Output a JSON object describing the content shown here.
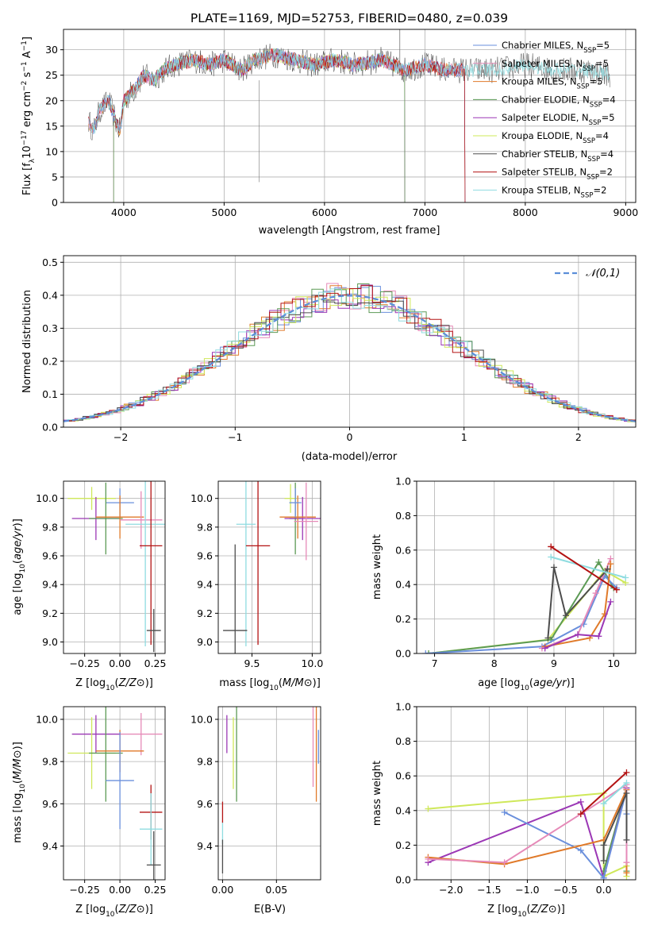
{
  "figure_title": "PLATE=1169, MJD=52753, FIBERID=0480, z=0.039",
  "series": [
    {
      "id": "ch_miles",
      "name": "Chabrier MILES",
      "nssp": "5",
      "color": "#6a8fdc"
    },
    {
      "id": "sa_miles",
      "name": "Salpeter MILES",
      "nssp": "5",
      "color": "#e68ab8"
    },
    {
      "id": "kr_miles",
      "name": "Kroupa MILES",
      "nssp": "5",
      "color": "#e07a2a"
    },
    {
      "id": "ch_elodie",
      "name": "Chabrier ELODIE",
      "nssp": "4",
      "color": "#5c9a55"
    },
    {
      "id": "sa_elodie",
      "name": "Salpeter ELODIE",
      "nssp": "5",
      "color": "#9b37b5"
    },
    {
      "id": "kr_elodie",
      "name": "Kroupa ELODIE",
      "nssp": "4",
      "color": "#cfe85a"
    },
    {
      "id": "ch_stelib",
      "name": "Chabrier STELIB",
      "nssp": "4",
      "color": "#4d4d4d"
    },
    {
      "id": "sa_stelib",
      "name": "Salpeter STELIB",
      "nssp": "2",
      "color": "#b31313"
    },
    {
      "id": "kr_stelib",
      "name": "Kroupa STELIB",
      "nssp": "2",
      "color": "#8fdce0"
    }
  ],
  "legend_nssp_prefix": "N",
  "legend_nssp_sub": "SSP",
  "chart_data": [
    {
      "id": "spectrum",
      "type": "line",
      "xlabel": "wavelength [Angstrom, rest frame]",
      "ylabel": "Flux [f_λ 10^-17 erg cm^-2 s^-1 A^-1]",
      "ylabel_parts": {
        "a": "Flux [f",
        "a_sub": "λ",
        "b": "10",
        "b_sup": "−17",
        "c": " erg cm",
        "c_sup": "−2",
        "d": " s",
        "d_sup": "−1",
        "e": " A",
        "e_sup": "−1",
        "f": "]"
      },
      "xlim": [
        3400,
        9100
      ],
      "ylim": [
        0,
        34
      ],
      "xticks": [
        4000,
        5000,
        6000,
        7000,
        8000,
        9000
      ],
      "yticks": [
        0,
        5,
        10,
        15,
        20,
        25,
        30
      ],
      "legend_position": "top-right",
      "spectrum_anchors": [
        [
          3650,
          16
        ],
        [
          3700,
          14
        ],
        [
          3760,
          18
        ],
        [
          3850,
          20
        ],
        [
          3920,
          16
        ],
        [
          3960,
          14
        ],
        [
          4000,
          20
        ],
        [
          4100,
          22
        ],
        [
          4200,
          25
        ],
        [
          4300,
          24
        ],
        [
          4400,
          26
        ],
        [
          4500,
          27
        ],
        [
          4700,
          28
        ],
        [
          4860,
          27
        ],
        [
          5000,
          28
        ],
        [
          5175,
          26
        ],
        [
          5300,
          28
        ],
        [
          5500,
          29
        ],
        [
          5700,
          28
        ],
        [
          5900,
          27
        ],
        [
          6100,
          28
        ],
        [
          6300,
          27
        ],
        [
          6563,
          28
        ],
        [
          6800,
          26
        ],
        [
          7000,
          27
        ],
        [
          7200,
          26
        ],
        [
          7400,
          26
        ],
        [
          7700,
          26
        ],
        [
          8000,
          27
        ],
        [
          8300,
          26
        ],
        [
          8600,
          26
        ],
        [
          8900,
          25
        ]
      ],
      "series_extent": {
        "ch_miles": [
          3650,
          7400
        ],
        "sa_miles": [
          3650,
          7400
        ],
        "kr_miles": [
          3650,
          7400
        ],
        "ch_elodie": [
          3900,
          6800
        ],
        "sa_elodie": [
          3900,
          6800
        ],
        "kr_elodie": [
          3900,
          6800
        ],
        "ch_stelib": [
          3650,
          8850
        ],
        "sa_stelib": [
          3650,
          7400
        ],
        "kr_stelib": [
          3650,
          8850
        ]
      }
    },
    {
      "id": "residuals",
      "type": "area",
      "xlabel": "(data-model)/error",
      "ylabel": "Normed distribution",
      "xlim": [
        -2.5,
        2.5
      ],
      "ylim": [
        0,
        0.52
      ],
      "xticks": [
        -2,
        -1,
        0,
        1,
        2
      ],
      "yticks": [
        0.0,
        0.1,
        0.2,
        0.3,
        0.4,
        0.5
      ],
      "legend_label": "𝒩(0,1)",
      "legend_position": "top-right",
      "bin_width": 0.1
    },
    {
      "id": "z_age",
      "type": "scatter",
      "xlabel": "Z [log10(Z/Z⊙)]",
      "ylabel": "age  [log10(age/yr)]",
      "xlim": [
        -0.4,
        0.32
      ],
      "ylim": [
        8.92,
        10.12
      ],
      "xticks": [
        -0.25,
        0.0,
        0.25
      ],
      "yticks": [
        9.0,
        9.2,
        9.4,
        9.6,
        9.8,
        10.0
      ],
      "points": [
        {
          "s": "kr_elodie",
          "x": -0.2,
          "y": 10.0,
          "xe": 0.17,
          "ye": 0.08
        },
        {
          "s": "ch_miles",
          "x": 0.0,
          "y": 9.97,
          "xe": 0.1,
          "ye": 0.1
        },
        {
          "s": "sa_elodie",
          "x": -0.17,
          "y": 9.86,
          "xe": 0.17,
          "ye": 0.15
        },
        {
          "s": "ch_elodie",
          "x": -0.1,
          "y": 9.86,
          "xe": 0.12,
          "ye": 0.25
        },
        {
          "s": "kr_miles",
          "x": 0.0,
          "y": 9.87,
          "xe": 0.17,
          "ye": 0.15
        },
        {
          "s": "sa_miles",
          "x": 0.15,
          "y": 9.85,
          "xe": 0.15,
          "ye": 0.2
        },
        {
          "s": "kr_stelib",
          "x": 0.18,
          "y": 9.82,
          "xe": 0.14,
          "ye": 0.85
        },
        {
          "s": "sa_stelib",
          "x": 0.22,
          "y": 9.67,
          "xe": 0.08,
          "ye": 0.69
        },
        {
          "s": "ch_stelib",
          "x": 0.24,
          "y": 9.08,
          "xe": 0.05,
          "ye": 0.15
        }
      ]
    },
    {
      "id": "mass_age",
      "type": "scatter",
      "xlabel": "mass [log10(M/M⊙)]",
      "ylabel": "",
      "xlim": [
        9.22,
        10.07
      ],
      "ylim": [
        8.92,
        10.12
      ],
      "xticks": [
        9.5,
        10.0
      ],
      "yticks": [
        9.0,
        9.2,
        9.4,
        9.6,
        9.8,
        10.0
      ],
      "points": [
        {
          "s": "kr_elodie",
          "x": 9.82,
          "y": 10.0,
          "xe": 0.05,
          "ye": 0.1
        },
        {
          "s": "ch_elodie",
          "x": 9.86,
          "y": 9.86,
          "xe": 0.05,
          "ye": 0.25
        },
        {
          "s": "sa_elodie",
          "x": 9.92,
          "y": 9.86,
          "xe": 0.15,
          "ye": 0.15
        },
        {
          "s": "kr_miles",
          "x": 9.88,
          "y": 9.87,
          "xe": 0.15,
          "ye": 0.15
        },
        {
          "s": "sa_miles",
          "x": 9.95,
          "y": 9.84,
          "xe": 0.1,
          "ye": 0.27
        },
        {
          "s": "ch_miles",
          "x": 9.86,
          "y": 9.97,
          "xe": 0.05,
          "ye": 0.1
        },
        {
          "s": "kr_stelib",
          "x": 9.45,
          "y": 9.82,
          "xe": 0.08,
          "ye": 0.85
        },
        {
          "s": "sa_stelib",
          "x": 9.55,
          "y": 9.67,
          "xe": 0.1,
          "ye": 0.69
        },
        {
          "s": "ch_stelib",
          "x": 9.36,
          "y": 9.08,
          "xe": 0.1,
          "ye": 0.6
        }
      ]
    },
    {
      "id": "age_weight",
      "type": "line",
      "xlabel": "age  [log10(age/yr)]",
      "ylabel": "mass weight",
      "xlim": [
        6.7,
        10.37
      ],
      "ylim": [
        0,
        1
      ],
      "xticks": [
        7,
        8,
        9,
        10
      ],
      "yticks": [
        0.0,
        0.2,
        0.4,
        0.6,
        0.8,
        1.0
      ],
      "series": [
        {
          "s": "kr_elodie",
          "x": [
            6.9,
            8.9,
            9.85,
            10.2
          ],
          "y": [
            0.0,
            0.08,
            0.48,
            0.41
          ]
        },
        {
          "s": "ch_elodie",
          "x": [
            6.9,
            8.95,
            9.75,
            10.0
          ],
          "y": [
            0.0,
            0.08,
            0.53,
            0.38
          ]
        },
        {
          "s": "ch_miles",
          "x": [
            6.85,
            8.8,
            9.5,
            9.85,
            10.05
          ],
          "y": [
            0.0,
            0.04,
            0.17,
            0.45,
            0.38
          ]
        },
        {
          "s": "sa_miles",
          "x": [
            8.8,
            9.4,
            9.7,
            9.95
          ],
          "y": [
            0.03,
            0.11,
            0.35,
            0.55
          ]
        },
        {
          "s": "kr_miles",
          "x": [
            8.85,
            9.6,
            9.85,
            9.95
          ],
          "y": [
            0.04,
            0.09,
            0.23,
            0.52
          ]
        },
        {
          "s": "sa_elodie",
          "x": [
            8.85,
            9.4,
            9.75,
            9.95
          ],
          "y": [
            0.03,
            0.11,
            0.1,
            0.3
          ]
        },
        {
          "s": "ch_stelib",
          "x": [
            8.9,
            9.0,
            9.2,
            9.9
          ],
          "y": [
            0.09,
            0.5,
            0.22,
            0.49
          ]
        },
        {
          "s": "kr_stelib",
          "x": [
            8.95,
            10.2
          ],
          "y": [
            0.56,
            0.44
          ]
        },
        {
          "s": "sa_stelib",
          "x": [
            8.95,
            10.05
          ],
          "y": [
            0.62,
            0.37
          ]
        }
      ]
    },
    {
      "id": "z_mass",
      "type": "scatter",
      "xlabel": "Z [log10(Z/Z⊙)]",
      "ylabel": "mass [log10(M/M⊙)]",
      "xlim": [
        -0.4,
        0.32
      ],
      "ylim": [
        9.24,
        10.06
      ],
      "xticks": [
        -0.25,
        0.0,
        0.25
      ],
      "yticks": [
        9.4,
        9.6,
        9.8,
        10.0
      ],
      "points": [
        {
          "s": "sa_elodie",
          "x": -0.17,
          "y": 9.93,
          "xe": 0.17,
          "ye": 0.09
        },
        {
          "s": "sa_miles",
          "x": 0.15,
          "y": 9.93,
          "xe": 0.15,
          "ye": 0.1
        },
        {
          "s": "kr_elodie",
          "x": -0.2,
          "y": 9.84,
          "xe": 0.17,
          "ye": 0.17
        },
        {
          "s": "ch_elodie",
          "x": -0.1,
          "y": 9.84,
          "xe": 0.12,
          "ye": 0.23
        },
        {
          "s": "kr_miles",
          "x": 0.0,
          "y": 9.85,
          "xe": 0.17,
          "ye": 0.1
        },
        {
          "s": "ch_miles",
          "x": 0.0,
          "y": 9.71,
          "xe": 0.1,
          "ye": 0.23
        },
        {
          "s": "sa_stelib",
          "x": 0.22,
          "y": 9.56,
          "xe": 0.08,
          "ye": 0.13
        },
        {
          "s": "kr_stelib",
          "x": 0.22,
          "y": 9.48,
          "xe": 0.08,
          "ye": 0.17
        },
        {
          "s": "ch_stelib",
          "x": 0.24,
          "y": 9.31,
          "xe": 0.05,
          "ye": 0.16
        }
      ]
    },
    {
      "id": "ebv_mass",
      "type": "scatter",
      "xlabel": "E(B-V)",
      "ylabel": "",
      "xlim": [
        -0.004,
        0.091
      ],
      "ylim": [
        9.24,
        10.06
      ],
      "xticks": [
        0.0,
        0.05
      ],
      "yticks": [
        9.4,
        9.6,
        9.8,
        10.0
      ],
      "points": [
        {
          "s": "sa_elodie",
          "x": 0.004,
          "y": 9.93,
          "xe": 0,
          "ye": 0.09
        },
        {
          "s": "kr_elodie",
          "x": 0.01,
          "y": 9.84,
          "xe": 0,
          "ye": 0.17
        },
        {
          "s": "ch_elodie",
          "x": 0.013,
          "y": 9.84,
          "xe": 0,
          "ye": 0.23
        },
        {
          "s": "sa_miles",
          "x": 0.084,
          "y": 9.93,
          "xe": 0,
          "ye": 0.25
        },
        {
          "s": "kr_miles",
          "x": 0.087,
          "y": 9.85,
          "xe": 0,
          "ye": 0.24
        },
        {
          "s": "ch_miles",
          "x": 0.089,
          "y": 9.87,
          "xe": 0,
          "ye": 0.08
        },
        {
          "s": "sa_stelib",
          "x": 0.0,
          "y": 9.56,
          "xe": 0,
          "ye": 0.05
        },
        {
          "s": "kr_stelib",
          "x": 0.0,
          "y": 9.46,
          "xe": 0,
          "ye": 0.05
        },
        {
          "s": "ch_stelib",
          "x": 0.0,
          "y": 9.35,
          "xe": 0,
          "ye": 0.08
        }
      ]
    },
    {
      "id": "z_weight",
      "type": "line",
      "xlabel": "Z [log10(Z/Z⊙)]",
      "ylabel": "mass weight",
      "xlim": [
        -2.45,
        0.42
      ],
      "ylim": [
        0,
        1
      ],
      "xticks": [
        -2.0,
        -1.5,
        -1.0,
        -0.5,
        0.0
      ],
      "yticks": [
        0.0,
        0.2,
        0.4,
        0.6,
        0.8,
        1.0
      ],
      "series": [
        {
          "s": "kr_elodie",
          "x": [
            -2.3,
            0.0,
            0.0,
            0.3,
            0.3
          ],
          "y": [
            0.41,
            0.5,
            0.02,
            0.08,
            0.02
          ]
        },
        {
          "s": "ch_elodie",
          "x": [
            0.0,
            0.3,
            0.3
          ],
          "y": [
            0.05,
            0.53,
            0.05
          ]
        },
        {
          "s": "sa_elodie",
          "x": [
            -2.3,
            -0.3,
            0.0,
            0.3
          ],
          "y": [
            0.1,
            0.45,
            0.01,
            0.53
          ]
        },
        {
          "s": "ch_miles",
          "x": [
            -1.3,
            -0.3,
            0.0,
            0.3,
            0.3
          ],
          "y": [
            0.39,
            0.17,
            0.01,
            0.52,
            0.38
          ]
        },
        {
          "s": "kr_miles",
          "x": [
            -2.3,
            -1.3,
            0.0,
            0.3,
            0.3
          ],
          "y": [
            0.13,
            0.09,
            0.23,
            0.52,
            0.04
          ]
        },
        {
          "s": "sa_miles",
          "x": [
            -2.3,
            -1.3,
            -0.3,
            0.3,
            0.3
          ],
          "y": [
            0.12,
            0.1,
            0.38,
            0.55,
            0.1
          ]
        },
        {
          "s": "ch_stelib",
          "x": [
            0.0,
            0.0,
            0.3,
            0.3
          ],
          "y": [
            0.11,
            0.2,
            0.5,
            0.23
          ]
        },
        {
          "s": "kr_stelib",
          "x": [
            0.0,
            0.3
          ],
          "y": [
            0.44,
            0.56
          ]
        },
        {
          "s": "sa_stelib",
          "x": [
            -0.3,
            0.3
          ],
          "y": [
            0.38,
            0.62
          ]
        }
      ]
    }
  ]
}
